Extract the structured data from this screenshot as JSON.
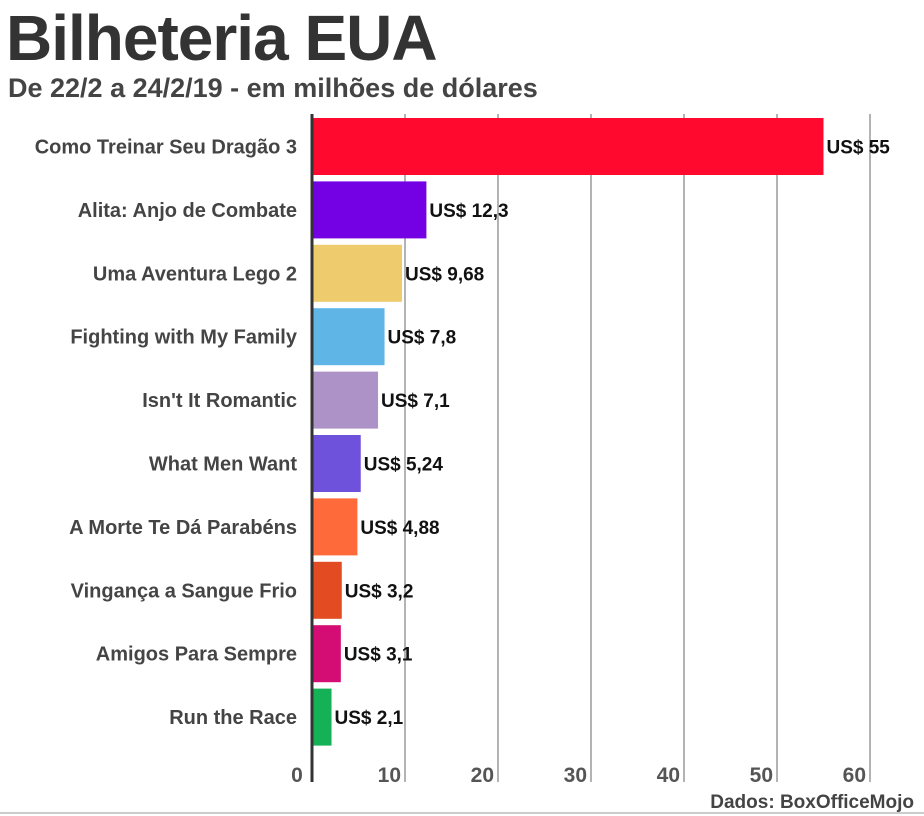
{
  "title": "Bilheteria EUA",
  "subtitle": "De 22/2 a 24/2/19 - em milhões de dólares",
  "source": "Dados: BoxOfficeMojo",
  "chart_data": {
    "type": "bar",
    "orientation": "horizontal",
    "title": "Bilheteria EUA",
    "subtitle": "De 22/2 a 24/2/19 - em milhões de dólares",
    "xlabel": "",
    "ylabel": "",
    "xlim": [
      0,
      60
    ],
    "x_ticks": [
      0,
      10,
      20,
      30,
      40,
      50,
      60
    ],
    "grid": "vertical",
    "categories": [
      "Como Treinar Seu Dragão 3",
      "Alita: Anjo de Combate",
      "Uma Aventura Lego 2",
      "Fighting with My Family",
      "Isn't It Romantic",
      "What Men Want",
      "A Morte Te Dá Parabéns",
      "Vingança a Sangue Frio",
      "Amigos Para Sempre",
      "Run the Race"
    ],
    "values": [
      55,
      12.3,
      9.68,
      7.8,
      7.1,
      5.24,
      4.88,
      3.2,
      3.1,
      2.1
    ],
    "value_labels": [
      "US$ 55",
      "US$ 12,3",
      "US$ 9,68",
      "US$ 7,8",
      "US$ 7,1",
      "US$ 5,24",
      "US$ 4,88",
      "US$ 3,2",
      "US$ 3,1",
      "US$ 2,1"
    ],
    "colors": [
      "#ff0a2e",
      "#7400e4",
      "#eecb6c",
      "#5fb5e6",
      "#ad92c8",
      "#6f52dc",
      "#ff6a3a",
      "#e34b22",
      "#d40d75",
      "#15b157"
    ]
  }
}
